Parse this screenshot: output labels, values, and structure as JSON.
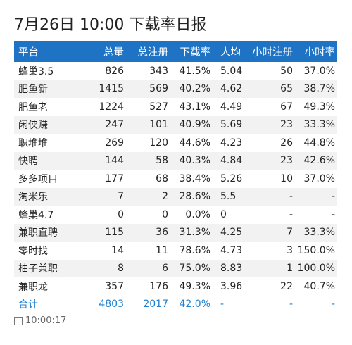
{
  "header": {
    "title": "7月26日 10:00 下载率日报"
  },
  "table": {
    "columns": [
      "平台",
      "总量",
      "总注册",
      "下载率",
      "人均",
      "小时注册",
      "小时率"
    ],
    "rows": [
      [
        "蜂巢3.5",
        "826",
        "343",
        "41.5%",
        "5.04",
        "50",
        "37.0%"
      ],
      [
        "肥鱼新",
        "1415",
        "569",
        "40.2%",
        "4.62",
        "65",
        "38.7%"
      ],
      [
        "肥鱼老",
        "1224",
        "527",
        "43.1%",
        "4.49",
        "67",
        "49.3%"
      ],
      [
        "闲侠赚",
        "247",
        "101",
        "40.9%",
        "5.69",
        "23",
        "33.3%"
      ],
      [
        "职堆堆",
        "269",
        "120",
        "44.6%",
        "4.23",
        "26",
        "44.8%"
      ],
      [
        "快聘",
        "144",
        "58",
        "40.3%",
        "4.84",
        "23",
        "42.6%"
      ],
      [
        "多多项目",
        "177",
        "68",
        "38.4%",
        "5.26",
        "10",
        "37.0%"
      ],
      [
        "淘米乐",
        "7",
        "2",
        "28.6%",
        "5.5",
        "-",
        "-"
      ],
      [
        "蜂巢4.7",
        "0",
        "0",
        "0.0%",
        "0",
        "-",
        "-"
      ],
      [
        "兼职直聘",
        "115",
        "36",
        "31.3%",
        "4.25",
        "7",
        "33.3%"
      ],
      [
        "零时找",
        "14",
        "11",
        "78.6%",
        "4.73",
        "3",
        "150.0%"
      ],
      [
        "柚子兼职",
        "8",
        "6",
        "75.0%",
        "8.83",
        "1",
        "100.0%"
      ],
      [
        "兼职龙",
        "357",
        "176",
        "49.3%",
        "3.96",
        "22",
        "40.7%"
      ]
    ],
    "total": [
      "合计",
      "4803",
      "2017",
      "42.0%",
      "-",
      "-",
      "-"
    ]
  },
  "footer": {
    "time": "10:00:17"
  }
}
